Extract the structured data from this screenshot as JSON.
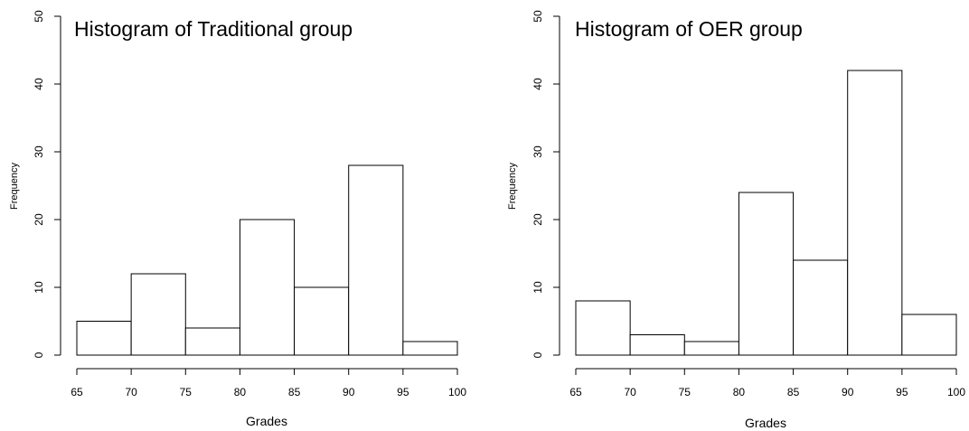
{
  "chart_data": [
    {
      "type": "bar",
      "title": "Histogram of Traditional group",
      "xlabel": "Grades",
      "ylabel": "Frequency",
      "bins": [
        [
          65,
          70
        ],
        [
          70,
          75
        ],
        [
          75,
          80
        ],
        [
          80,
          85
        ],
        [
          85,
          90
        ],
        [
          90,
          95
        ],
        [
          95,
          100
        ]
      ],
      "values": [
        5,
        12,
        4,
        20,
        10,
        28,
        2
      ],
      "xticks": [
        65,
        70,
        75,
        80,
        85,
        90,
        95,
        100
      ],
      "yticks": [
        0,
        10,
        20,
        30,
        40,
        50
      ],
      "xlim": [
        65,
        100
      ],
      "ylim": [
        0,
        50
      ],
      "grid": false
    },
    {
      "type": "bar",
      "title": "Histogram of OER group",
      "xlabel": "Grades",
      "ylabel": "Frequency",
      "bins": [
        [
          65,
          70
        ],
        [
          70,
          75
        ],
        [
          75,
          80
        ],
        [
          80,
          85
        ],
        [
          85,
          90
        ],
        [
          90,
          95
        ],
        [
          95,
          100
        ]
      ],
      "values": [
        8,
        3,
        2,
        24,
        14,
        42,
        6
      ],
      "xticks": [
        65,
        70,
        75,
        80,
        85,
        90,
        95,
        100
      ],
      "yticks": [
        0,
        10,
        20,
        30,
        40,
        50
      ],
      "xlim": [
        65,
        100
      ],
      "ylim": [
        0,
        50
      ],
      "grid": false
    }
  ]
}
